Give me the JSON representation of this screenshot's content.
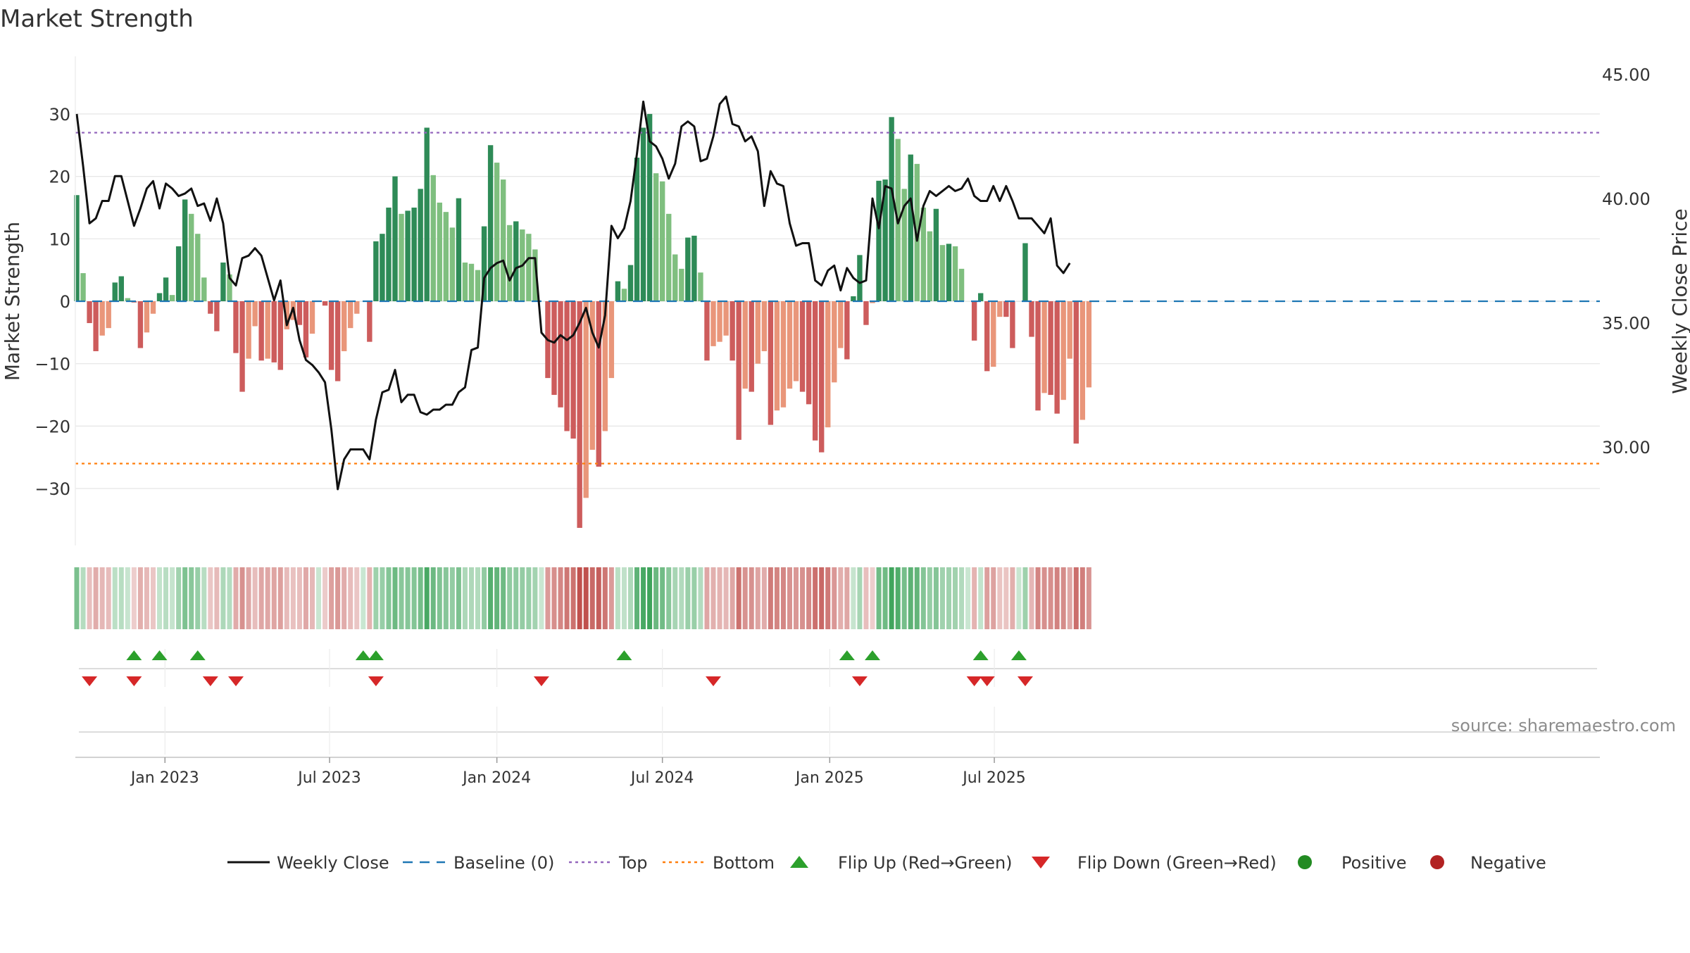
{
  "chart_data": {
    "type": "bar",
    "title": "Market Strength",
    "ylabel": "Market Strength",
    "y2label": "Weekly Close Price",
    "source": "source: sharemaestro.com",
    "ylim": [
      -39,
      39
    ],
    "y2lim": [
      26.14,
      46.25
    ],
    "yticks": [
      -30,
      -20,
      -10,
      0,
      10,
      20,
      30
    ],
    "yticklabels": [
      "−30",
      "−20",
      "−10",
      "0",
      "10",
      "20",
      "30"
    ],
    "y2ticks": [
      30,
      35,
      40,
      45
    ],
    "y2ticklabels": [
      "30.00",
      "35.00",
      "40.00",
      "45.00"
    ],
    "x_start": "2022-09-26",
    "x_end": "2025-09-01",
    "xticks": [
      {
        "date": "2023-01-01",
        "label": "Jan 2023"
      },
      {
        "date": "2023-07-01",
        "label": "Jul 2023"
      },
      {
        "date": "2024-01-01",
        "label": "Jan 2024"
      },
      {
        "date": "2024-07-01",
        "label": "Jul 2024"
      },
      {
        "date": "2025-01-01",
        "label": "Jan 2025"
      },
      {
        "date": "2025-07-01",
        "label": "Jul 2025"
      }
    ],
    "top_level": 27,
    "bottom_level": -26,
    "grid": true,
    "legend_position": "bottom",
    "colors": {
      "line": "#111111",
      "baseline": "#1f77b4",
      "top": "#9467bd",
      "bottom": "#ff7f0e",
      "pos_strong": "#2e8b57",
      "pos_weak": "#7fbf7f",
      "neg_strong": "#cd5c5c",
      "neg_weak": "#e9967a",
      "flip_up": "#2ca02c",
      "flip_down": "#d62728",
      "positive": "#228b22",
      "negative": "#b22222"
    },
    "series": [
      {
        "name": "Market Strength",
        "kind": "bar",
        "values": [
          17,
          4.5,
          -3.5,
          -8,
          -5.5,
          -4.3,
          3,
          4,
          0.5,
          -0.2,
          -7.5,
          -5,
          -2,
          1.3,
          3.8,
          1,
          8.8,
          16.3,
          14,
          10.8,
          3.8,
          -2,
          -4.8,
          6.2,
          4.3,
          -8.3,
          -14.5,
          -9.2,
          -4,
          -9.5,
          -9.2,
          -9.8,
          -11,
          -4.5,
          -3,
          -3.8,
          -9,
          -5.2,
          0,
          -0.7,
          -11,
          -12.8,
          -8,
          -4.3,
          -2,
          0,
          -6.5,
          9.6,
          10.8,
          15,
          20,
          14,
          14.5,
          15,
          18,
          27.8,
          20.2,
          15.8,
          14.3,
          11.8,
          16.5,
          6.2,
          6,
          5,
          12,
          25,
          22.2,
          19.5,
          12.2,
          12.8,
          11.5,
          10.8,
          8.3,
          0,
          -12.3,
          -15,
          -17,
          -20.8,
          -22,
          -36.3,
          -31.5,
          -23.8,
          -26.5,
          -20.8,
          -12.3,
          3.2,
          2,
          5.8,
          23,
          27.8,
          30,
          20.5,
          19.2,
          14,
          7.5,
          5.2,
          10.2,
          10.5,
          4.6,
          -9.5,
          -7.2,
          -6.5,
          -5.5,
          -9.5,
          -22.2,
          -14,
          -14.5,
          -10,
          -8,
          -19.8,
          -17.5,
          -17,
          -14,
          -12.8,
          -14.5,
          -16.5,
          -22.3,
          -24.2,
          -20.2,
          -13,
          -7.5,
          -9.3,
          0.8,
          7.4,
          -3.8,
          -0.3,
          19.3,
          19.5,
          29.5,
          26,
          18,
          23.5,
          22,
          15,
          11.2,
          14.8,
          9,
          9.2,
          8.8,
          5.2,
          0,
          -6.3,
          1.3,
          -11.2,
          -10.5,
          -2.5,
          -2.5,
          -7.5,
          0,
          9.3,
          -5.7,
          -17.5,
          -14.7,
          -15,
          -18,
          -15.8,
          -9.2,
          -22.8,
          -19,
          -13.8
        ]
      },
      {
        "name": "Weekly Close",
        "kind": "line",
        "values": [
          43.4,
          41.3,
          39.0,
          39.2,
          39.9,
          39.9,
          40.9,
          40.9,
          39.9,
          38.9,
          39.6,
          40.4,
          40.7,
          39.6,
          40.6,
          40.4,
          40.1,
          40.2,
          40.4,
          39.7,
          39.8,
          39.1,
          40.0,
          39.0,
          36.8,
          36.5,
          37.6,
          37.7,
          38.0,
          37.7,
          36.8,
          35.9,
          36.7,
          34.9,
          35.6,
          34.3,
          33.5,
          33.3,
          33.0,
          32.6,
          30.7,
          28.3,
          29.5,
          29.9,
          29.9,
          29.9,
          29.5,
          31.1,
          32.2,
          32.3,
          33.1,
          31.8,
          32.1,
          32.1,
          31.4,
          31.3,
          31.5,
          31.5,
          31.7,
          31.7,
          32.2,
          32.4,
          33.9,
          34.0,
          36.8,
          37.2,
          37.4,
          37.5,
          36.7,
          37.2,
          37.3,
          37.6,
          37.6,
          34.6,
          34.3,
          34.2,
          34.5,
          34.3,
          34.5,
          35.0,
          35.6,
          34.6,
          34.0,
          35.3,
          38.9,
          38.4,
          38.8,
          39.9,
          41.8,
          43.9,
          42.3,
          42.1,
          41.6,
          40.8,
          41.4,
          42.9,
          43.1,
          42.9,
          41.5,
          41.6,
          42.5,
          43.8,
          44.1,
          43.0,
          42.9,
          42.3,
          42.5,
          41.9,
          39.7,
          41.1,
          40.6,
          40.5,
          39.0,
          38.1,
          38.2,
          38.2,
          36.7,
          36.5,
          37.1,
          37.3,
          36.3,
          37.2,
          36.8,
          36.6,
          36.7,
          40.0,
          38.8,
          40.5,
          40.4,
          39.0,
          39.7,
          40.0,
          38.3,
          39.7,
          40.3,
          40.1,
          40.3,
          40.5,
          40.3,
          40.4,
          40.8,
          40.1,
          39.9,
          39.9,
          40.5,
          39.9,
          40.5,
          39.9,
          39.2,
          39.2,
          39.2,
          38.9,
          38.6,
          39.2,
          37.3,
          37.0,
          37.4
        ]
      }
    ],
    "flip_up_dates": [
      "2022-11-28",
      "2022-12-26",
      "2023-02-06",
      "2023-08-07",
      "2023-08-21",
      "2024-05-20",
      "2025-01-20",
      "2025-02-17",
      "2025-06-16",
      "2025-07-28"
    ],
    "flip_down_dates": [
      "2022-10-10",
      "2022-11-28",
      "2023-02-20",
      "2023-03-20",
      "2023-08-21",
      "2024-02-19",
      "2024-08-26",
      "2025-02-03",
      "2025-06-09",
      "2025-06-23",
      "2025-08-04"
    ]
  },
  "legend": [
    {
      "label": "Weekly Close",
      "symbol": "line"
    },
    {
      "label": "Baseline (0)",
      "symbol": "dash"
    },
    {
      "label": "Top",
      "symbol": "dot"
    },
    {
      "label": "Bottom",
      "symbol": "dot"
    },
    {
      "label": "Flip Up (Red→Green)",
      "symbol": "triangle-up"
    },
    {
      "label": "Flip Down (Green→Red)",
      "symbol": "triangle-down"
    },
    {
      "label": "Positive",
      "symbol": "circle"
    },
    {
      "label": "Negative",
      "symbol": "circle"
    }
  ]
}
